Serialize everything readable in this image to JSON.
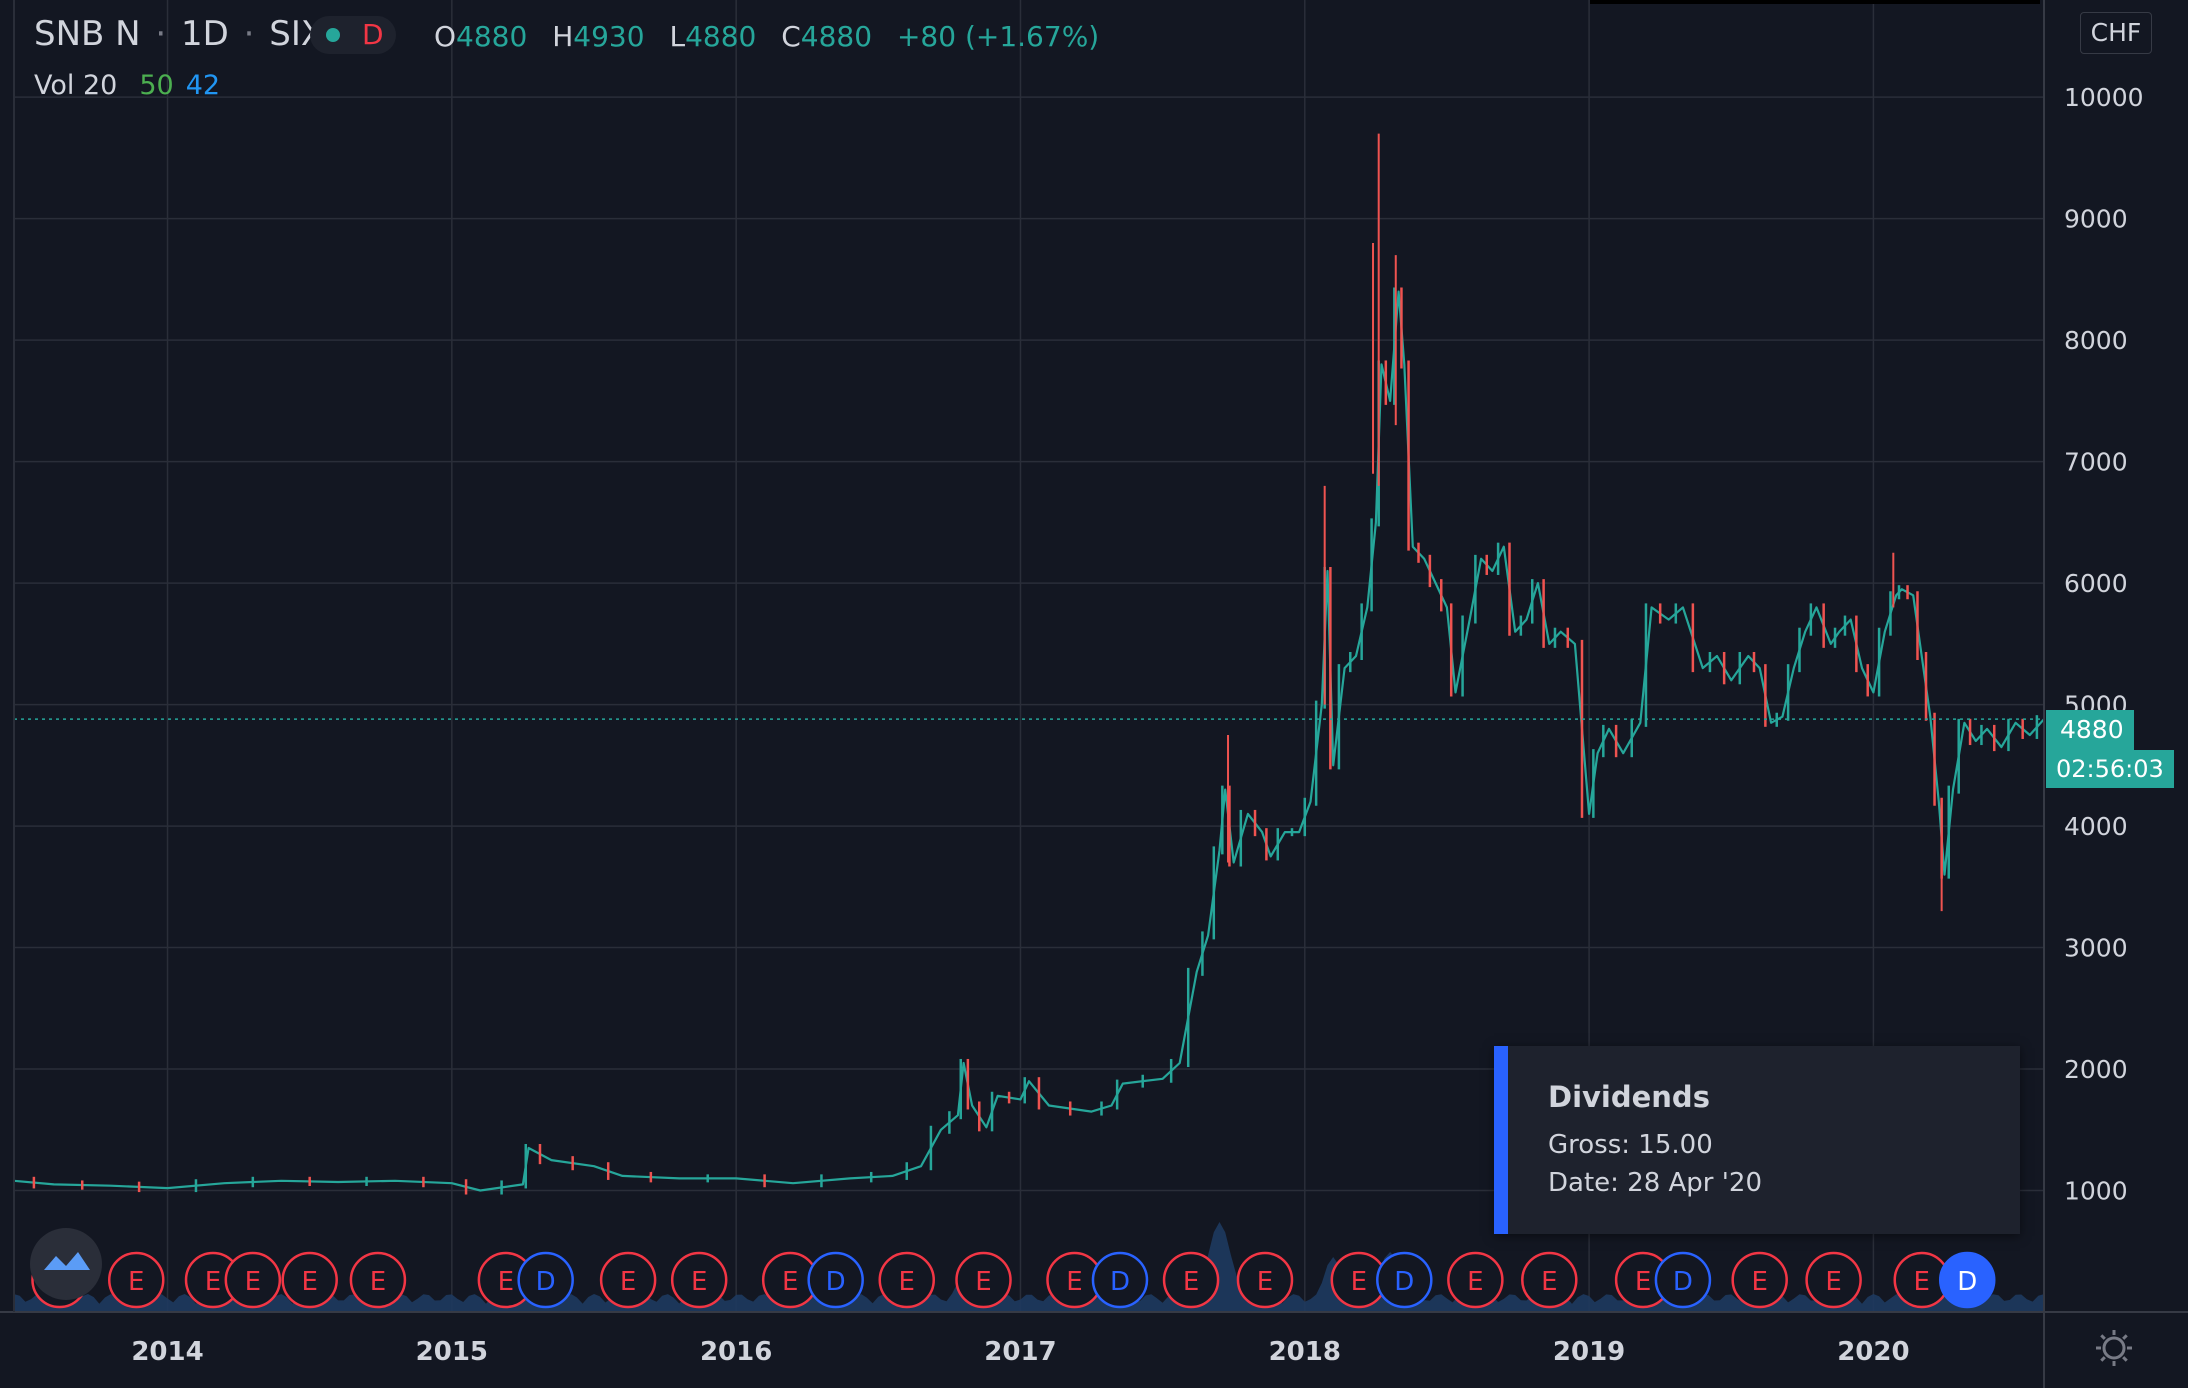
{
  "header": {
    "symbol": "SNB N",
    "interval": "1D",
    "exchange": "SIX",
    "market_status": "D",
    "market_status_color": "#f23645",
    "status_dot_color": "#26a69a",
    "open_label": "O",
    "open": "4880",
    "high_label": "H",
    "high": "4930",
    "low_label": "L",
    "low": "4880",
    "close_label": "C",
    "close": "4880",
    "change": "+80 (+1.67%)"
  },
  "volume_legend": {
    "label": "Vol 20",
    "value1": "50",
    "value2": "42"
  },
  "currency": "CHF",
  "last_price_tag": "4880",
  "countdown": "02:56:03",
  "tooltip": {
    "title": "Dividends",
    "gross_label": "Gross:",
    "gross": "15.00",
    "date_label": "Date:",
    "date": "28 Apr '20"
  },
  "colors": {
    "up": "#26a69a",
    "down": "#ef5350",
    "volume": "#1e3a5f",
    "earnings": "#f23645",
    "dividends": "#2962ff",
    "background": "#131722",
    "grid": "#2a2e39"
  },
  "chart_data": {
    "type": "line",
    "description": "candlestick price series",
    "y_ticks": [
      1000,
      2000,
      3000,
      4000,
      5000,
      6000,
      7000,
      8000,
      9000,
      10000
    ],
    "ylim": [
      0,
      10800
    ],
    "x_tick_labels": [
      "2014",
      "2015",
      "2016",
      "2017",
      "2018",
      "2019",
      "2020"
    ],
    "x_tick_dates": [
      2014.0,
      2015.0,
      2016.0,
      2017.0,
      2018.0,
      2019.0,
      2020.0
    ],
    "xlim": [
      2013.46,
      2020.6
    ],
    "price_series": [
      [
        2013.46,
        1080
      ],
      [
        2013.6,
        1050
      ],
      [
        2013.8,
        1040
      ],
      [
        2014.0,
        1020
      ],
      [
        2014.2,
        1060
      ],
      [
        2014.4,
        1080
      ],
      [
        2014.6,
        1070
      ],
      [
        2014.8,
        1080
      ],
      [
        2015.0,
        1060
      ],
      [
        2015.1,
        1000
      ],
      [
        2015.25,
        1050
      ],
      [
        2015.27,
        1350
      ],
      [
        2015.35,
        1250
      ],
      [
        2015.5,
        1200
      ],
      [
        2015.6,
        1120
      ],
      [
        2015.8,
        1100
      ],
      [
        2016.0,
        1100
      ],
      [
        2016.2,
        1060
      ],
      [
        2016.4,
        1100
      ],
      [
        2016.55,
        1120
      ],
      [
        2016.65,
        1200
      ],
      [
        2016.72,
        1500
      ],
      [
        2016.78,
        1620
      ],
      [
        2016.8,
        2050
      ],
      [
        2016.83,
        1700
      ],
      [
        2016.88,
        1520
      ],
      [
        2016.92,
        1780
      ],
      [
        2017.0,
        1750
      ],
      [
        2017.03,
        1900
      ],
      [
        2017.1,
        1700
      ],
      [
        2017.25,
        1650
      ],
      [
        2017.32,
        1700
      ],
      [
        2017.36,
        1880
      ],
      [
        2017.5,
        1920
      ],
      [
        2017.56,
        2050
      ],
      [
        2017.62,
        2800
      ],
      [
        2017.66,
        3100
      ],
      [
        2017.7,
        3800
      ],
      [
        2017.72,
        4300
      ],
      [
        2017.75,
        3700
      ],
      [
        2017.8,
        4100
      ],
      [
        2017.85,
        3950
      ],
      [
        2017.88,
        3750
      ],
      [
        2017.93,
        3950
      ],
      [
        2017.98,
        3950
      ],
      [
        2018.02,
        4200
      ],
      [
        2018.06,
        5000
      ],
      [
        2018.08,
        6100
      ],
      [
        2018.1,
        4500
      ],
      [
        2018.14,
        5300
      ],
      [
        2018.18,
        5400
      ],
      [
        2018.22,
        5800
      ],
      [
        2018.25,
        6500
      ],
      [
        2018.27,
        7800
      ],
      [
        2018.3,
        7500
      ],
      [
        2018.33,
        8400
      ],
      [
        2018.35,
        7800
      ],
      [
        2018.38,
        6300
      ],
      [
        2018.42,
        6200
      ],
      [
        2018.46,
        6000
      ],
      [
        2018.5,
        5800
      ],
      [
        2018.53,
        5100
      ],
      [
        2018.58,
        5700
      ],
      [
        2018.62,
        6200
      ],
      [
        2018.66,
        6100
      ],
      [
        2018.7,
        6300
      ],
      [
        2018.74,
        5600
      ],
      [
        2018.78,
        5700
      ],
      [
        2018.82,
        6000
      ],
      [
        2018.86,
        5500
      ],
      [
        2018.9,
        5600
      ],
      [
        2018.95,
        5500
      ],
      [
        2019.0,
        4100
      ],
      [
        2019.03,
        4600
      ],
      [
        2019.07,
        4800
      ],
      [
        2019.12,
        4600
      ],
      [
        2019.18,
        4850
      ],
      [
        2019.22,
        5800
      ],
      [
        2019.28,
        5700
      ],
      [
        2019.33,
        5800
      ],
      [
        2019.4,
        5300
      ],
      [
        2019.45,
        5400
      ],
      [
        2019.5,
        5200
      ],
      [
        2019.56,
        5400
      ],
      [
        2019.6,
        5300
      ],
      [
        2019.64,
        4850
      ],
      [
        2019.68,
        4900
      ],
      [
        2019.72,
        5300
      ],
      [
        2019.76,
        5600
      ],
      [
        2019.8,
        5800
      ],
      [
        2019.85,
        5500
      ],
      [
        2019.88,
        5600
      ],
      [
        2019.92,
        5700
      ],
      [
        2019.96,
        5300
      ],
      [
        2020.0,
        5100
      ],
      [
        2020.04,
        5600
      ],
      [
        2020.08,
        5900
      ],
      [
        2020.1,
        5950
      ],
      [
        2020.14,
        5900
      ],
      [
        2020.17,
        5400
      ],
      [
        2020.2,
        4900
      ],
      [
        2020.23,
        4200
      ],
      [
        2020.25,
        3600
      ],
      [
        2020.28,
        4300
      ],
      [
        2020.32,
        4850
      ],
      [
        2020.36,
        4700
      ],
      [
        2020.4,
        4800
      ],
      [
        2020.45,
        4650
      ],
      [
        2020.5,
        4850
      ],
      [
        2020.55,
        4750
      ],
      [
        2020.6,
        4880
      ]
    ],
    "spikes": [
      [
        2018.26,
        9700,
        6800
      ],
      [
        2018.24,
        8800,
        6900
      ],
      [
        2018.32,
        8700,
        7300
      ],
      [
        2018.07,
        6800,
        5000
      ],
      [
        2017.73,
        4750,
        3700
      ],
      [
        2020.07,
        6250,
        5800
      ],
      [
        2020.24,
        3300,
        4000
      ]
    ],
    "last_price": 4880,
    "events": [
      {
        "type": "E",
        "date": 2013.62
      },
      {
        "type": "E",
        "date": 2013.89
      },
      {
        "type": "E",
        "date": 2014.16
      },
      {
        "type": "E",
        "date": 2014.3
      },
      {
        "type": "E",
        "date": 2014.5
      },
      {
        "type": "E",
        "date": 2014.74
      },
      {
        "type": "E",
        "date": 2015.19
      },
      {
        "type": "D",
        "date": 2015.33
      },
      {
        "type": "E",
        "date": 2015.62
      },
      {
        "type": "E",
        "date": 2015.87
      },
      {
        "type": "E",
        "date": 2016.19
      },
      {
        "type": "D",
        "date": 2016.35
      },
      {
        "type": "E",
        "date": 2016.6
      },
      {
        "type": "E",
        "date": 2016.87
      },
      {
        "type": "E",
        "date": 2017.19
      },
      {
        "type": "D",
        "date": 2017.35
      },
      {
        "type": "E",
        "date": 2017.6
      },
      {
        "type": "E",
        "date": 2017.86
      },
      {
        "type": "E",
        "date": 2018.19
      },
      {
        "type": "D",
        "date": 2018.35
      },
      {
        "type": "E",
        "date": 2018.6
      },
      {
        "type": "E",
        "date": 2018.86
      },
      {
        "type": "E",
        "date": 2019.19
      },
      {
        "type": "D",
        "date": 2019.33
      },
      {
        "type": "E",
        "date": 2019.6
      },
      {
        "type": "E",
        "date": 2019.86
      },
      {
        "type": "E",
        "date": 2020.17
      },
      {
        "type": "D",
        "date": 2020.33,
        "highlight": true
      }
    ]
  }
}
